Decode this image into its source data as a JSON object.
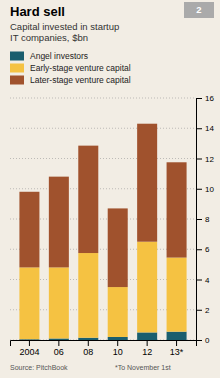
{
  "chart_data": {
    "type": "bar",
    "stacked": true,
    "title": "Hard sell",
    "subtitle": "Capital invested in startup\nIT companies, $bn",
    "annotations": [
      "2",
      "Source: PitchBook",
      "*To November 1st"
    ],
    "categories": [
      "2004",
      "06",
      "08",
      "10",
      "12",
      "13*"
    ],
    "series": [
      {
        "name": "Angel investors",
        "color": "#1a5e6e",
        "values": [
          0.05,
          0.1,
          0.15,
          0.2,
          0.5,
          0.55
        ]
      },
      {
        "name": "Early-stage venture capital",
        "color": "#f5c242",
        "values": [
          4.75,
          4.7,
          5.6,
          3.3,
          6.0,
          4.9
        ]
      },
      {
        "name": "Later-stage venture capital",
        "color": "#a0522d",
        "values": [
          5.0,
          6.0,
          7.1,
          5.2,
          7.8,
          6.3
        ]
      }
    ],
    "ylim": [
      0,
      16
    ],
    "yticks": [
      0,
      2,
      4,
      6,
      8,
      10,
      12,
      14,
      16
    ],
    "grid": true,
    "legend": "top-left"
  }
}
